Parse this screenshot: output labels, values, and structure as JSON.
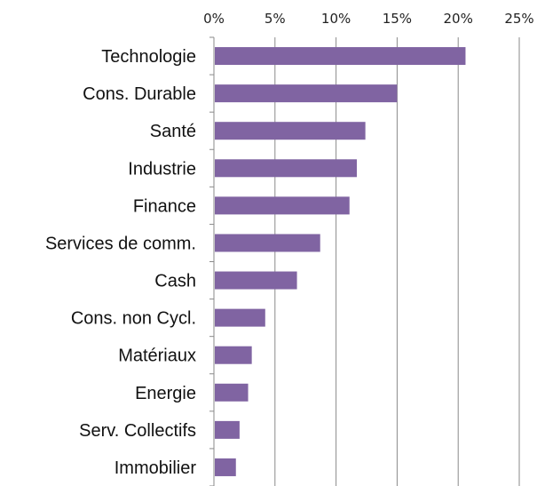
{
  "chart_data": {
    "type": "bar",
    "orientation": "horizontal",
    "categories": [
      "Technologie",
      "Cons. Durable",
      "Santé",
      "Industrie",
      "Finance",
      "Services de comm.",
      "Cash",
      "Cons. non Cycl.",
      "Matériaux",
      "Energie",
      "Serv. Collectifs",
      "Immobilier"
    ],
    "values": [
      20.6,
      15.0,
      12.4,
      11.7,
      11.1,
      8.7,
      6.8,
      4.2,
      3.1,
      2.8,
      2.1,
      1.8
    ],
    "xlim": [
      0,
      25
    ],
    "xticks": [
      0,
      5,
      10,
      15,
      20,
      25
    ],
    "xtick_labels": [
      "0%",
      "5%",
      "10%",
      "15%",
      "20%",
      "25%"
    ],
    "axis_position": "top",
    "grid": "vertical gridlines",
    "legend": "none",
    "bar_color": "#8064a2",
    "title": "",
    "xlabel": "",
    "ylabel": ""
  }
}
